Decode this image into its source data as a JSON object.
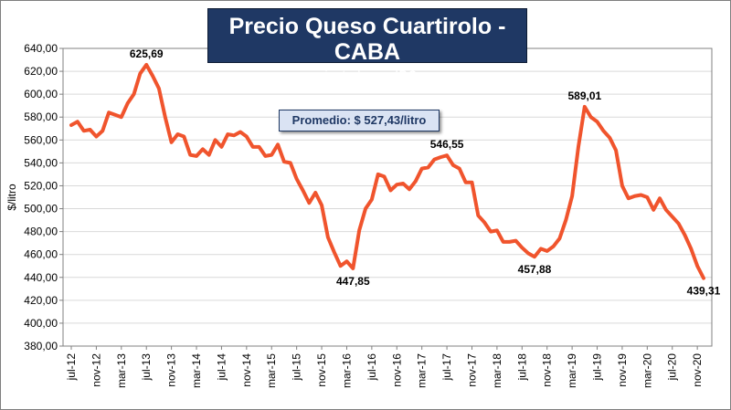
{
  "colors": {
    "line": "#f0542d",
    "title_bg": "#1f3864",
    "avg_bg": "#dae3f3",
    "grid": "#d9d9d9",
    "text": "#000000"
  },
  "chart_data": {
    "type": "line",
    "title": "Precio Queso Cuartirolo - CABA",
    "subtitle": "- ajustado por IPC -",
    "ylabel": "$/litro",
    "xlabel": "",
    "ylim": [
      380,
      640
    ],
    "y_ticks": [
      "640,00",
      "620,00",
      "600,00",
      "580,00",
      "560,00",
      "540,00",
      "520,00",
      "500,00",
      "480,00",
      "460,00",
      "440,00",
      "420,00",
      "400,00",
      "380,00"
    ],
    "grid": true,
    "legend": "none",
    "x_tick_labels": [
      "jul-12",
      "nov-12",
      "mar-13",
      "jul-13",
      "nov-13",
      "mar-14",
      "jul-14",
      "nov-14",
      "mar-15",
      "jul-15",
      "nov-15",
      "mar-16",
      "jul-16",
      "nov-16",
      "mar-17",
      "jul-17",
      "nov-17",
      "mar-18",
      "jul-18",
      "nov-18",
      "mar-19",
      "jul-19",
      "nov-19",
      "mar-20",
      "jul-20",
      "nov-20"
    ],
    "x": [
      "jul-12",
      "ago-12",
      "sep-12",
      "oct-12",
      "nov-12",
      "dic-12",
      "ene-13",
      "feb-13",
      "mar-13",
      "abr-13",
      "may-13",
      "jun-13",
      "jul-13",
      "ago-13",
      "sep-13",
      "oct-13",
      "nov-13",
      "dic-13",
      "ene-14",
      "feb-14",
      "mar-14",
      "abr-14",
      "may-14",
      "jun-14",
      "jul-14",
      "ago-14",
      "sep-14",
      "oct-14",
      "nov-14",
      "dic-14",
      "ene-15",
      "feb-15",
      "mar-15",
      "abr-15",
      "may-15",
      "jun-15",
      "jul-15",
      "ago-15",
      "sep-15",
      "oct-15",
      "nov-15",
      "dic-15",
      "ene-16",
      "feb-16",
      "mar-16",
      "abr-16",
      "may-16",
      "jun-16",
      "jul-16",
      "ago-16",
      "sep-16",
      "oct-16",
      "nov-16",
      "dic-16",
      "ene-17",
      "feb-17",
      "mar-17",
      "abr-17",
      "may-17",
      "jun-17",
      "jul-17",
      "ago-17",
      "sep-17",
      "oct-17",
      "nov-17",
      "dic-17",
      "ene-18",
      "feb-18",
      "mar-18",
      "abr-18",
      "may-18",
      "jun-18",
      "jul-18",
      "ago-18",
      "sep-18",
      "oct-18",
      "nov-18",
      "dic-18",
      "ene-19",
      "feb-19",
      "mar-19",
      "abr-19",
      "may-19",
      "jun-19",
      "jul-19",
      "ago-19",
      "sep-19",
      "oct-19",
      "nov-19",
      "dic-19",
      "ene-20",
      "feb-20",
      "mar-20",
      "abr-20",
      "may-20",
      "jun-20",
      "jul-20",
      "ago-20",
      "sep-20",
      "oct-20",
      "nov-20",
      "dic-20"
    ],
    "series": [
      {
        "values": [
          573,
          576,
          568,
          569,
          563,
          568,
          584,
          582,
          580,
          592,
          600,
          618,
          625.69,
          616,
          605,
          580,
          558,
          565,
          563,
          547,
          546,
          552,
          547,
          560,
          554,
          565,
          564,
          567,
          563,
          554,
          554,
          546,
          547,
          556,
          541,
          540,
          526,
          516,
          505,
          514,
          503,
          475,
          462,
          450,
          454,
          447.85,
          481,
          500,
          508,
          530,
          528,
          516,
          521,
          522,
          517,
          524,
          535,
          536,
          543,
          545,
          546.55,
          538,
          535,
          523,
          523,
          494,
          488,
          480,
          481,
          471,
          471,
          472,
          466,
          461,
          458,
          465,
          463,
          467,
          474,
          490,
          511,
          554,
          589.01,
          580,
          576,
          568,
          562,
          551,
          520,
          509,
          511,
          512,
          510,
          499,
          509,
          499,
          493,
          487,
          477,
          465,
          450,
          439.31
        ]
      }
    ],
    "annotations": [
      {
        "label": "625,69",
        "index": 12,
        "pos": "above"
      },
      {
        "label": "447,85",
        "index": 45,
        "pos": "below"
      },
      {
        "label": "546,55",
        "index": 60,
        "pos": "above"
      },
      {
        "label": "457,88",
        "index": 74,
        "pos": "below"
      },
      {
        "label": "589,01",
        "index": 82,
        "pos": "above"
      },
      {
        "label": "439,31",
        "index": 101,
        "pos": "below"
      }
    ]
  },
  "average_label": "Promedio: $ 527,43/litro"
}
